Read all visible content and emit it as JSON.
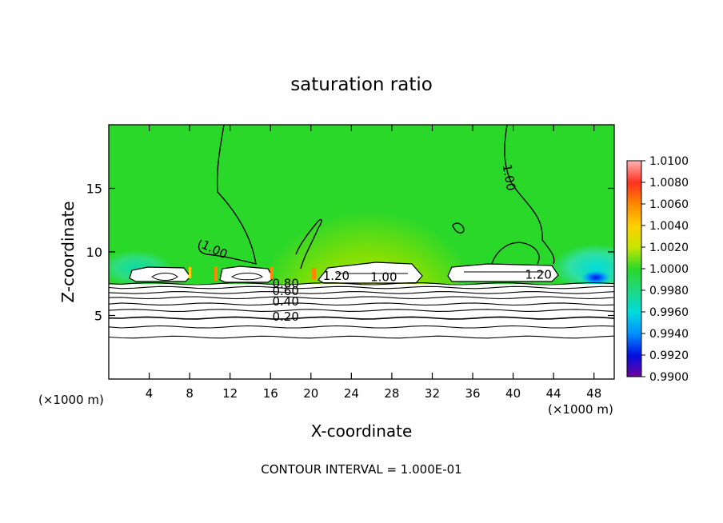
{
  "chart_data": {
    "type": "heatmap",
    "title": "saturation ratio",
    "xlabel": "X-coordinate",
    "ylabel": "Z-coordinate",
    "x_unit_left": "(×1000 m)",
    "x_unit_right": "(×1000 m)",
    "footer": "CONTOUR INTERVAL = 1.000E-01",
    "xlim": [
      0,
      50
    ],
    "ylim": [
      0,
      20
    ],
    "xticks": [
      4,
      8,
      12,
      16,
      20,
      24,
      28,
      32,
      36,
      40,
      44,
      48
    ],
    "yticks": [
      5,
      10,
      15
    ],
    "colorbar": {
      "labels": [
        "1.0100",
        "1.0080",
        "1.0060",
        "1.0040",
        "1.0020",
        "1.0000",
        "0.9980",
        "0.9960",
        "0.9940",
        "0.9920",
        "0.9900"
      ],
      "colors": [
        "#ffb4b4",
        "#ff3020",
        "#ff8800",
        "#ffd000",
        "#c8e600",
        "#28d828",
        "#20d880",
        "#00dcdc",
        "#0090ff",
        "#0010e0",
        "#7000a0"
      ]
    },
    "background_color": "#2ad82a",
    "contour_interval": 0.1,
    "contour_labels": [
      {
        "text": "0.20",
        "x": 17.5,
        "y": 4.6
      },
      {
        "text": "0.40",
        "x": 17.5,
        "y": 5.8
      },
      {
        "text": "0.60",
        "x": 17.5,
        "y": 6.6
      },
      {
        "text": "0.80",
        "x": 17.5,
        "y": 7.2
      },
      {
        "text": "1.00",
        "x": 10.3,
        "y": 9.9
      },
      {
        "text": "1.20",
        "x": 22.5,
        "y": 7.8
      },
      {
        "text": "1.00",
        "x": 27.2,
        "y": 7.7
      },
      {
        "text": "1.20",
        "x": 42.5,
        "y": 7.9
      },
      {
        "text": "1.00",
        "x": 39.2,
        "y": 15.8
      }
    ],
    "layer_contour_heights": [
      3.3,
      4.1,
      4.8,
      5.4,
      5.9,
      6.4,
      6.8,
      7.2,
      7.5
    ]
  }
}
